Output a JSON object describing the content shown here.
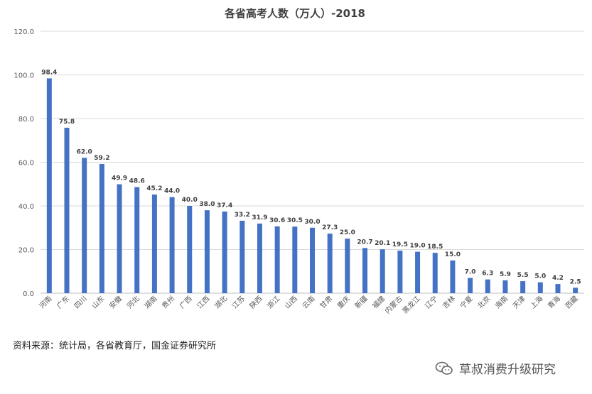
{
  "chart_data": {
    "type": "bar",
    "title": "各省高考人数（万人）-2018",
    "xlabel": "",
    "ylabel": "",
    "ylim": [
      0,
      120
    ],
    "yticks": [
      "0.0",
      "20.0",
      "40.0",
      "60.0",
      "80.0",
      "100.0",
      "120.0"
    ],
    "grid": true,
    "bar_color": "#4472C4",
    "categories": [
      "河南",
      "广东",
      "四川",
      "山东",
      "安徽",
      "河北",
      "湖南",
      "贵州",
      "广西",
      "江西",
      "湖北",
      "江苏",
      "陕西",
      "浙江",
      "山西",
      "云南",
      "甘肃",
      "重庆",
      "新疆",
      "福建",
      "内蒙古",
      "黑龙江",
      "辽宁",
      "吉林",
      "宁夏",
      "北京",
      "海南",
      "天津",
      "上海",
      "青海",
      "西藏"
    ],
    "values": [
      98.4,
      75.8,
      62.0,
      59.2,
      49.9,
      48.6,
      45.2,
      44.0,
      40.0,
      38.0,
      37.4,
      33.2,
      31.9,
      30.6,
      30.5,
      30.0,
      27.3,
      25.0,
      20.7,
      20.1,
      19.5,
      19.0,
      18.5,
      15.0,
      7.0,
      6.3,
      5.9,
      5.5,
      5.0,
      4.2,
      2.5
    ],
    "value_labels": [
      "98.4",
      "75.8",
      "62.0",
      "59.2",
      "49.9",
      "48.6",
      "45.2",
      "44.0",
      "40.0",
      "38.0",
      "37.4",
      "33.2",
      "31.9",
      "30.6",
      "30.5",
      "30.0",
      "27.3",
      "25.0",
      "20.7",
      "20.1",
      "19.5",
      "19.0",
      "18.5",
      "15.0",
      "7.0",
      "6.3",
      "5.9",
      "5.5",
      "5.0",
      "4.2",
      "2.5"
    ]
  },
  "footer": {
    "source": "资料来源：统计局，各省教育厅，国金证券研究所",
    "watermark": "草叔消费升级研究",
    "watermark_icon": "wechat-icon"
  }
}
